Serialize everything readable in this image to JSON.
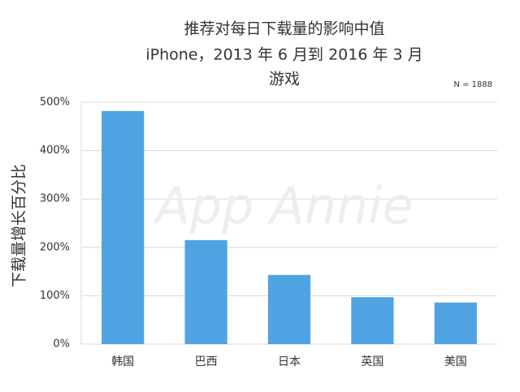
{
  "chart_data": {
    "type": "bar",
    "title": "推荐对每日下载量的影响中值",
    "subtitle": [
      "iPhone，2013 年 6 月到 2016 年 3 月",
      "游戏"
    ],
    "annotation": "N = 1888",
    "watermark": "App Annie",
    "y_label": "下载量增长百分比",
    "categories": [
      "韩国",
      "巴西",
      "日本",
      "英国",
      "美国"
    ],
    "values": [
      482,
      215,
      143,
      97,
      86
    ],
    "color": "#4fa3e3",
    "ylim": [
      0,
      500
    ],
    "yticks": [
      {
        "value": 0,
        "label": "0%"
      },
      {
        "value": 100,
        "label": "100%"
      },
      {
        "value": 200,
        "label": "200%"
      },
      {
        "value": 300,
        "label": "300%"
      },
      {
        "value": 400,
        "label": "400%"
      },
      {
        "value": 500,
        "label": "500%"
      }
    ],
    "grid": true
  }
}
